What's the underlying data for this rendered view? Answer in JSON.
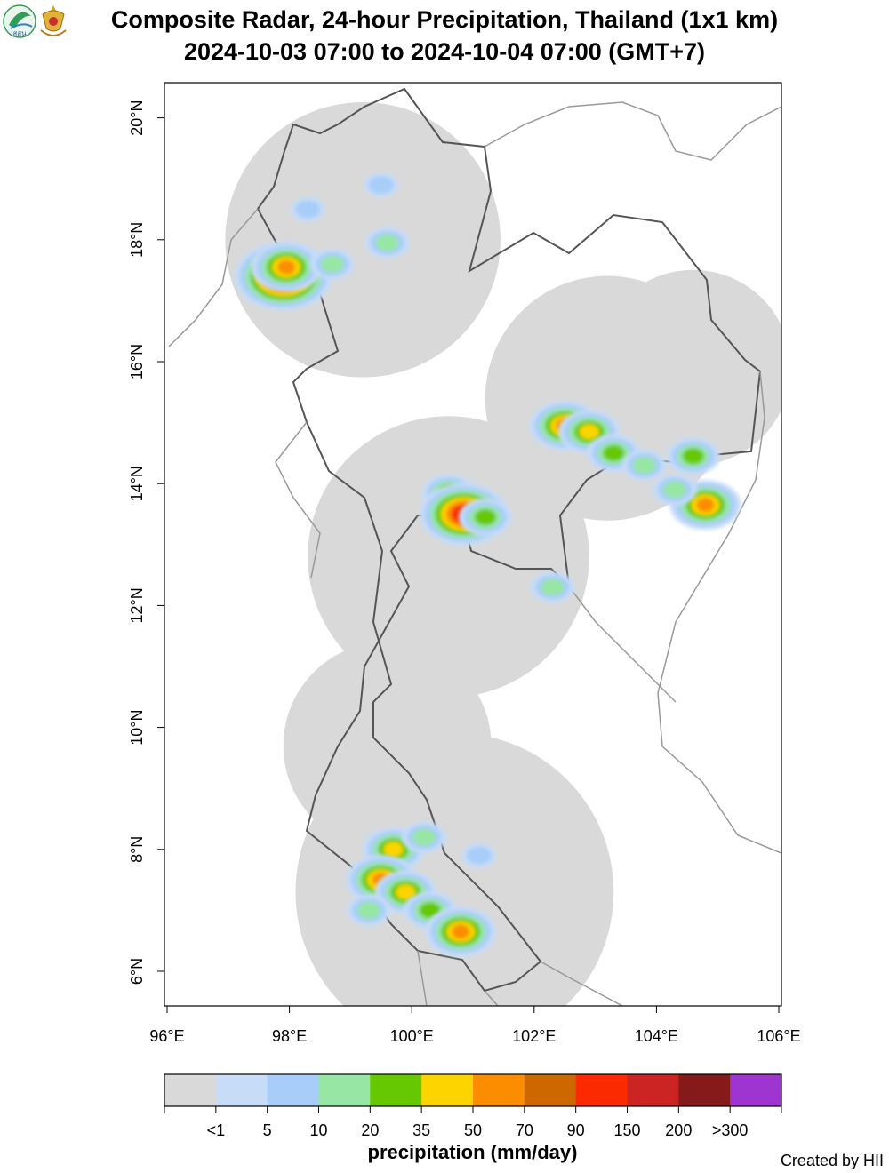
{
  "title": {
    "line1": "Composite Radar, 24-hour Precipitation, Thailand (1x1 km)",
    "line2": "2024-10-03 07:00 to 2024-10-04 07:00 (GMT+7)"
  },
  "logos": [
    {
      "name": "hii-logo",
      "text": "สสน"
    },
    {
      "name": "royal-emblem-logo",
      "text": ""
    }
  ],
  "axes": {
    "lon_range": [
      96,
      106
    ],
    "lat_range": [
      5.5,
      20.6
    ],
    "x_ticks": [
      "96°E",
      "98°E",
      "100°E",
      "102°E",
      "104°E",
      "106°E"
    ],
    "y_ticks": [
      "6°N",
      "8°N",
      "10°N",
      "12°N",
      "14°N",
      "16°N",
      "18°N",
      "20°N"
    ]
  },
  "radar_coverage": [
    {
      "lon": 99.2,
      "lat": 18.0,
      "radius_deg": 2.25
    },
    {
      "lon": 103.2,
      "lat": 15.4,
      "radius_deg": 2.0
    },
    {
      "lon": 104.6,
      "lat": 15.9,
      "radius_deg": 1.6
    },
    {
      "lon": 100.6,
      "lat": 12.8,
      "radius_deg": 2.3
    },
    {
      "lon": 99.6,
      "lat": 9.7,
      "radius_deg": 1.7
    },
    {
      "lon": 100.7,
      "lat": 7.3,
      "radius_deg": 2.6
    }
  ],
  "rain_patches": [
    {
      "lon": 97.9,
      "lat": 17.4,
      "cls": 9
    },
    {
      "lon": 97.95,
      "lat": 17.55,
      "cls": 6
    },
    {
      "lon": 98.7,
      "lat": 17.6,
      "cls": 3
    },
    {
      "lon": 99.6,
      "lat": 17.95,
      "cls": 3
    },
    {
      "lon": 98.3,
      "lat": 18.5,
      "cls": 2
    },
    {
      "lon": 99.5,
      "lat": 18.9,
      "cls": 2
    },
    {
      "lon": 102.5,
      "lat": 14.95,
      "cls": 6
    },
    {
      "lon": 102.9,
      "lat": 14.85,
      "cls": 5
    },
    {
      "lon": 103.3,
      "lat": 14.5,
      "cls": 4
    },
    {
      "lon": 103.8,
      "lat": 14.3,
      "cls": 3
    },
    {
      "lon": 104.6,
      "lat": 14.45,
      "cls": 4
    },
    {
      "lon": 104.8,
      "lat": 13.65,
      "cls": 6
    },
    {
      "lon": 104.3,
      "lat": 13.9,
      "cls": 3
    },
    {
      "lon": 100.6,
      "lat": 13.85,
      "cls": 4
    },
    {
      "lon": 100.85,
      "lat": 13.5,
      "cls": 8
    },
    {
      "lon": 101.2,
      "lat": 13.45,
      "cls": 4
    },
    {
      "lon": 102.3,
      "lat": 12.3,
      "cls": 3
    },
    {
      "lon": 99.7,
      "lat": 8.0,
      "cls": 5
    },
    {
      "lon": 99.5,
      "lat": 7.5,
      "cls": 6
    },
    {
      "lon": 99.9,
      "lat": 7.3,
      "cls": 5
    },
    {
      "lon": 100.3,
      "lat": 7.0,
      "cls": 4
    },
    {
      "lon": 100.8,
      "lat": 6.65,
      "cls": 6
    },
    {
      "lon": 99.3,
      "lat": 7.0,
      "cls": 3
    },
    {
      "lon": 100.2,
      "lat": 8.2,
      "cls": 3
    },
    {
      "lon": 101.1,
      "lat": 7.9,
      "cls": 2
    }
  ],
  "colorbar": {
    "colors": [
      "#d9d9d9",
      "#c6dcf7",
      "#a8cdf9",
      "#97e6a4",
      "#66c800",
      "#fcd400",
      "#fc8c00",
      "#cd6800",
      "#fb2a00",
      "#cc2323",
      "#861a1a",
      "#9e35d0"
    ],
    "labels": [
      "<1",
      "5",
      "10",
      "20",
      "35",
      "50",
      "70",
      "90",
      "150",
      "200",
      ">300"
    ],
    "title": "precipitation (mm/day)"
  },
  "credit": "Created by HII"
}
